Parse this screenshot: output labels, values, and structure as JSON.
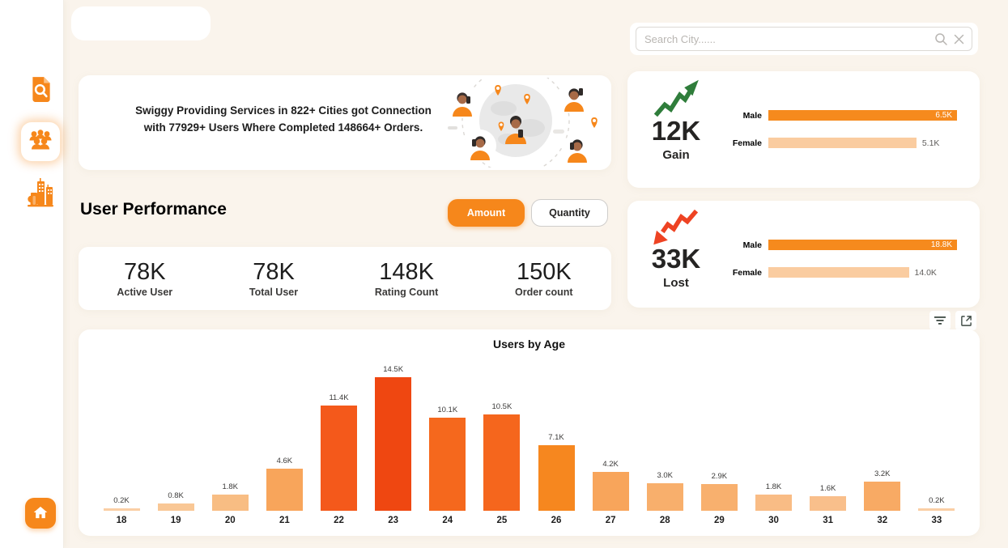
{
  "colors": {
    "accent": "#F6871B",
    "background": "#FAF4EC",
    "card": "#FFFFFF",
    "gain_arrow": "#2F7D3B",
    "lost_arrow": "#EE4323",
    "text_dark": "#252423",
    "text_gray": "#605E5C"
  },
  "sidebar": {
    "items": [
      {
        "name": "document-search",
        "active": false
      },
      {
        "name": "users-group",
        "active": true
      },
      {
        "name": "city-buildings",
        "active": false
      },
      {
        "name": "home",
        "active": false
      }
    ]
  },
  "search": {
    "placeholder": "Search City......"
  },
  "banner": {
    "line1": "Swiggy Providing Services in 822+ Cities got Connection",
    "line2": "with 77929+ Users Where Completed 148664+ Orders."
  },
  "gain_card": {
    "value": "12K",
    "label": "Gain",
    "bars": [
      {
        "label": "Male",
        "display": "6.5K",
        "value": 6.5,
        "inside": true,
        "color": "#F68A1D"
      },
      {
        "label": "Female",
        "display": "5.1K",
        "value": 5.1,
        "inside": false,
        "color": "#FACCA0"
      }
    ]
  },
  "lost_card": {
    "value": "33K",
    "label": "Lost",
    "bars": [
      {
        "label": "Male",
        "display": "18.8K",
        "value": 18.8,
        "inside": true,
        "color": "#F68A1D"
      },
      {
        "label": "Female",
        "display": "14.0K",
        "value": 14.0,
        "inside": false,
        "color": "#FACCA0"
      }
    ]
  },
  "performance": {
    "title": "User Performance",
    "toggle": [
      {
        "label": "Amount",
        "active": true
      },
      {
        "label": "Quantity",
        "active": false
      }
    ],
    "kpis": [
      {
        "value": "78K",
        "label": "Active User"
      },
      {
        "value": "78K",
        "label": "Total User"
      },
      {
        "value": "148K",
        "label": "Rating Count"
      },
      {
        "value": "150K",
        "label": "Order count"
      }
    ]
  },
  "chart_data": {
    "type": "bar",
    "title": "Users by Age",
    "categories": [
      "18",
      "19",
      "20",
      "21",
      "22",
      "23",
      "24",
      "25",
      "26",
      "27",
      "28",
      "29",
      "30",
      "31",
      "32",
      "33"
    ],
    "values": [
      0.2,
      0.8,
      1.8,
      4.6,
      11.4,
      14.5,
      10.1,
      10.5,
      7.1,
      4.2,
      3.0,
      2.9,
      1.8,
      1.6,
      3.2,
      0.2
    ],
    "labels": [
      "0.2K",
      "0.8K",
      "1.8K",
      "4.6K",
      "11.4K",
      "14.5K",
      "10.1K",
      "10.5K",
      "7.1K",
      "4.2K",
      "3.0K",
      "2.9K",
      "1.8K",
      "1.6K",
      "3.2K",
      "0.2K"
    ],
    "bar_colors": [
      "#FACFA5",
      "#F9C795",
      "#F8BD83",
      "#F8A55B",
      "#F4591B",
      "#EF4711",
      "#F5681D",
      "#F5661D",
      "#F6871F",
      "#F8A55B",
      "#F8AF6C",
      "#F8B06E",
      "#F9BC85",
      "#F9BF8B",
      "#F8AA64",
      "#FACFA5"
    ],
    "xlabel": "",
    "ylabel": "",
    "ylim": [
      0,
      15
    ],
    "grid": false,
    "legend": false
  },
  "visual_header": {
    "icons": [
      "filter",
      "focus-mode"
    ]
  }
}
